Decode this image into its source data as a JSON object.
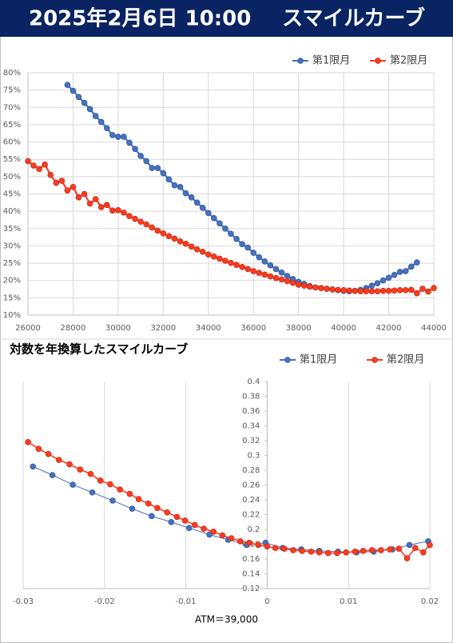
{
  "header": {
    "date": "2025年2月6日 10:00",
    "title": "スマイルカーブ"
  },
  "chart_data": [
    {
      "type": "line",
      "xlim": [
        26000,
        44000
      ],
      "xticks": [
        26000,
        28000,
        30000,
        32000,
        34000,
        36000,
        38000,
        40000,
        42000,
        44000
      ],
      "ylim": [
        10,
        80
      ],
      "yticks": [
        {
          "value": 10,
          "label": "10%"
        },
        {
          "value": 15,
          "label": "15%"
        },
        {
          "value": 20,
          "label": "20%"
        },
        {
          "value": 25,
          "label": "25%"
        },
        {
          "value": 30,
          "label": "30%"
        },
        {
          "value": 35,
          "label": "35%"
        },
        {
          "value": 40,
          "label": "40%"
        },
        {
          "value": 45,
          "label": "45%"
        },
        {
          "value": 50,
          "label": "50%"
        },
        {
          "value": 55,
          "label": "55%"
        },
        {
          "value": 60,
          "label": "60%"
        },
        {
          "value": 65,
          "label": "65%"
        },
        {
          "value": 70,
          "label": "70%"
        },
        {
          "value": 75,
          "label": "75%"
        },
        {
          "value": 80,
          "label": "80%"
        }
      ],
      "grid": "both",
      "legend": "top-right",
      "markers": "all",
      "series": [
        {
          "name": "第1限月",
          "color": "#4472c4",
          "x": [
            27750,
            28000,
            28250,
            28500,
            28750,
            29000,
            29250,
            29500,
            29750,
            30000,
            30250,
            30500,
            30750,
            31000,
            31250,
            31500,
            31750,
            32000,
            32250,
            32500,
            32750,
            33000,
            33250,
            33500,
            33750,
            34000,
            34250,
            34500,
            34750,
            35000,
            35250,
            35500,
            35750,
            36000,
            36250,
            36500,
            36750,
            37000,
            37250,
            37500,
            37750,
            38000,
            38250,
            38500,
            38750,
            39000,
            39250,
            39500,
            39750,
            40000,
            40250,
            40500,
            40750,
            41000,
            41250,
            41500,
            41750,
            42000,
            42250,
            42500,
            42750,
            43000,
            43250
          ],
          "values": [
            76.5,
            74.8,
            73,
            71.3,
            69.5,
            67.5,
            65.8,
            64,
            62,
            61.5,
            61.5,
            59.8,
            58,
            56,
            54.5,
            52.5,
            52.5,
            51,
            49.2,
            47.5,
            47,
            45.2,
            44,
            42.5,
            41,
            39.5,
            38,
            36.5,
            35,
            33.5,
            32,
            30.5,
            29.5,
            28,
            26.7,
            25.5,
            24.4,
            23.3,
            22.3,
            21.3,
            20.4,
            19.6,
            19,
            18.4,
            18,
            17.8,
            17.6,
            17.4,
            17.2,
            17,
            16.9,
            17,
            17.3,
            17.8,
            18.5,
            19.2,
            20,
            20.8,
            21.6,
            22.5,
            22.7,
            24,
            25.2
          ]
        },
        {
          "name": "第2限月",
          "color": "#ff3b1f",
          "x": [
            26000,
            26250,
            26500,
            26750,
            27000,
            27250,
            27500,
            27750,
            28000,
            28250,
            28500,
            28750,
            29000,
            29250,
            29500,
            29750,
            30000,
            30250,
            30500,
            30750,
            31000,
            31250,
            31500,
            31750,
            32000,
            32250,
            32500,
            32750,
            33000,
            33250,
            33500,
            33750,
            34000,
            34250,
            34500,
            34750,
            35000,
            35250,
            35500,
            35750,
            36000,
            36250,
            36500,
            36750,
            37000,
            37250,
            37500,
            37750,
            38000,
            38250,
            38500,
            38750,
            39000,
            39250,
            39500,
            39750,
            40000,
            40250,
            40500,
            40750,
            41000,
            41250,
            41500,
            41750,
            42000,
            42250,
            42500,
            42750,
            43000,
            43250,
            43500,
            43750,
            44000
          ],
          "values": [
            54.5,
            53.2,
            52.2,
            53.5,
            50.5,
            48.2,
            48.8,
            46,
            47,
            44,
            45,
            42.2,
            43.5,
            41.2,
            41.8,
            40.2,
            40.3,
            39.6,
            38.6,
            37.8,
            37,
            36.2,
            35.3,
            34.4,
            33.6,
            32.8,
            32.1,
            31.3,
            30.6,
            29.8,
            29,
            28.3,
            27.5,
            26.9,
            26.3,
            25.7,
            25.1,
            24.5,
            23.9,
            23.3,
            22.7,
            22.2,
            21.7,
            21.2,
            20.7,
            20.3,
            19.8,
            19.3,
            18.8,
            18.5,
            18.2,
            18,
            17.8,
            17.6,
            17.4,
            17.3,
            17.2,
            17.1,
            17,
            16.9,
            16.9,
            16.9,
            16.9,
            17,
            17,
            17.1,
            17.2,
            17.2,
            17.3,
            16.3,
            17.6,
            16.8,
            17.8
          ]
        }
      ]
    },
    {
      "type": "line",
      "title": "対数を年換算したスマイルカーブ",
      "x_label": "ATM＝39,000",
      "xlim": [
        -0.03,
        0.02
      ],
      "xticks": [
        -0.03,
        -0.02,
        -0.01,
        0,
        0.01,
        0.02
      ],
      "ylim": [
        0.12,
        0.4
      ],
      "yticks": [
        0.12,
        0.14,
        0.16,
        0.18,
        0.2,
        0.22,
        0.24,
        0.26,
        0.28,
        0.3,
        0.32,
        0.34,
        0.36,
        0.38,
        0.4
      ],
      "grid": "x",
      "legend": "top-right",
      "yaxis_at_zero": true,
      "series": [
        {
          "name": "第1限月",
          "color": "#4472c4",
          "x": [
            -0.0288,
            -0.0264,
            -0.0239,
            -0.0215,
            -0.019,
            -0.0166,
            -0.0142,
            -0.0118,
            -0.0096,
            -0.0071,
            -0.0048,
            -0.0025,
            -0.0002,
            0.0019,
            0.0042,
            0.0064,
            0.0087,
            0.011,
            0.0131,
            0.0154,
            0.0175,
            0.0198
          ],
          "values": [
            0.285,
            0.2735,
            0.2605,
            0.25,
            0.239,
            0.228,
            0.218,
            0.21,
            0.202,
            0.193,
            0.186,
            0.179,
            0.182,
            0.175,
            0.173,
            0.171,
            0.17,
            0.169,
            0.17,
            0.173,
            0.179,
            0.184
          ]
        },
        {
          "name": "第2限月",
          "color": "#ff3b1f",
          "x": [
            -0.0294,
            -0.0281,
            -0.0269,
            -0.0256,
            -0.0243,
            -0.023,
            -0.0217,
            -0.0205,
            -0.0193,
            -0.0181,
            -0.0169,
            -0.0158,
            -0.0146,
            -0.0135,
            -0.0123,
            -0.0111,
            -0.0101,
            -0.0089,
            -0.0078,
            -0.0066,
            -0.0055,
            -0.0044,
            -0.0033,
            -0.0022,
            -0.0011,
            0,
            0.001,
            0.0021,
            0.0032,
            0.0043,
            0.0054,
            0.0064,
            0.0075,
            0.0086,
            0.0097,
            0.0108,
            0.0118,
            0.0129,
            0.014,
            0.0151,
            0.0162,
            0.0172,
            0.0182,
            0.0192,
            0.02
          ],
          "values": [
            0.318,
            0.309,
            0.302,
            0.294,
            0.288,
            0.281,
            0.275,
            0.266,
            0.261,
            0.254,
            0.248,
            0.241,
            0.235,
            0.229,
            0.223,
            0.217,
            0.212,
            0.206,
            0.201,
            0.197,
            0.192,
            0.188,
            0.184,
            0.182,
            0.179,
            0.177,
            0.175,
            0.174,
            0.172,
            0.171,
            0.17,
            0.169,
            0.168,
            0.168,
            0.169,
            0.17,
            0.171,
            0.172,
            0.172,
            0.173,
            0.174,
            0.161,
            0.175,
            0.169,
            0.179
          ]
        }
      ]
    }
  ]
}
